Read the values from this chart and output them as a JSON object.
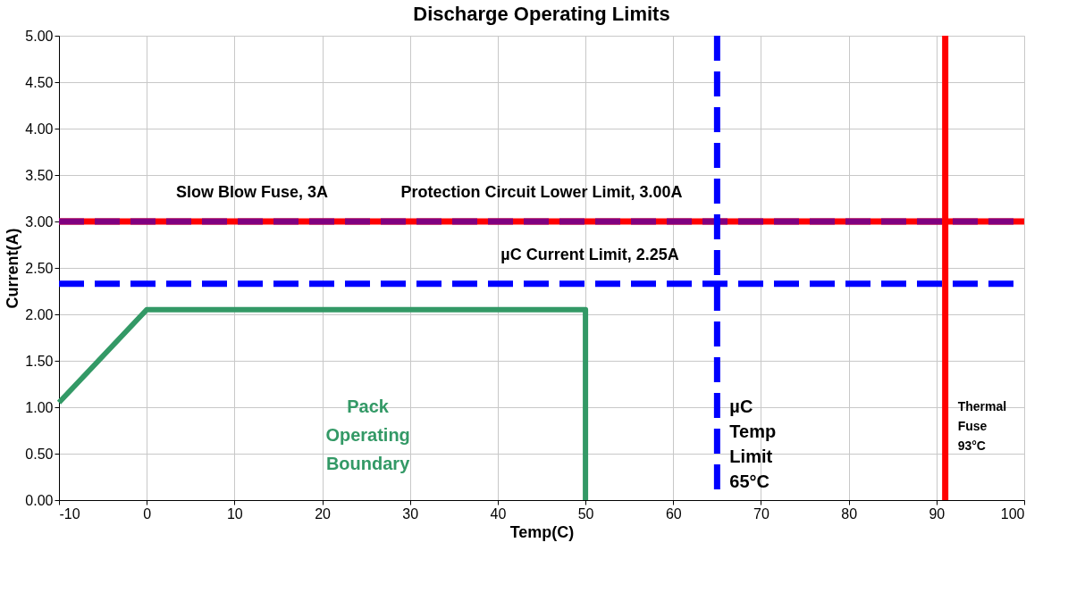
{
  "chart_data": {
    "type": "line",
    "title": "Discharge Operating Limits",
    "xlabel": "Temp(C)",
    "ylabel": "Current(A)",
    "x": [
      -10,
      0,
      50,
      50
    ],
    "series": [
      {
        "name": "Pack\nOperating\nBoundary",
        "color": "#339966",
        "values": [
          1.05,
          2.05,
          2.05,
          0
        ]
      }
    ],
    "xlim": [
      -10,
      100
    ],
    "xticks": [
      -10,
      0,
      10,
      20,
      30,
      40,
      50,
      60,
      70,
      80,
      90,
      100
    ],
    "ylim": [
      0,
      5
    ],
    "yticks": [
      {
        "value": 0,
        "label": "0.00"
      },
      {
        "value": 0.5,
        "label": "0.50"
      },
      {
        "value": 1,
        "label": "1.00"
      },
      {
        "value": 1.5,
        "label": "1.50"
      },
      {
        "value": 2,
        "label": "2.00"
      },
      {
        "value": 2.5,
        "label": "2.50"
      },
      {
        "value": 3,
        "label": "3.00"
      },
      {
        "value": 3.5,
        "label": "3.50"
      },
      {
        "value": 4,
        "label": "4.00"
      },
      {
        "value": 4.5,
        "label": "4.50"
      },
      {
        "value": 5,
        "label": "5.00"
      }
    ],
    "grid": true,
    "legend": false,
    "line_style": "solid",
    "ref_lines": [
      {
        "axis": "y",
        "value": 3.0,
        "label": "Slow Blow Fuse, 3A",
        "color": "#ff0000",
        "line_style": "solid"
      },
      {
        "axis": "y",
        "value": 3.0,
        "label": "Protection Circuit Lower Limit, 3.00A",
        "color": "#800080",
        "line_style": "dashed"
      },
      {
        "axis": "y",
        "value": 2.33,
        "label": "µC Current Limit, 2.25A",
        "color": "#0000ff",
        "line_style": "dashed"
      },
      {
        "axis": "x",
        "value": 65,
        "label": "µC\nTemp\nLimit\n65°C",
        "color": "#0000ff",
        "line_style": "dashed"
      },
      {
        "axis": "x",
        "value": 91,
        "label": "Thermal\nFuse\n93°C",
        "color": "#ff0000",
        "line_style": "solid"
      }
    ]
  }
}
